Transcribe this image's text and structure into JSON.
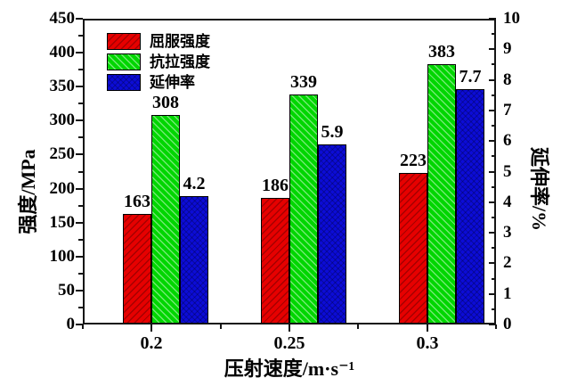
{
  "chart_data": {
    "type": "bar",
    "categories": [
      "0.2",
      "0.25",
      "0.3"
    ],
    "series": [
      {
        "name": "屈服强度",
        "axis": "left",
        "color": "#e60000",
        "hatch": "forward",
        "values": [
          163,
          186,
          223
        ],
        "labels": [
          "163",
          "186",
          "223"
        ]
      },
      {
        "name": "抗拉强度",
        "axis": "left",
        "color": "#00d600",
        "hatch": "backward",
        "values": [
          308,
          339,
          383
        ],
        "labels": [
          "308",
          "339",
          "383"
        ]
      },
      {
        "name": "延伸率",
        "axis": "right",
        "color": "#0c0cd6",
        "hatch": "cross",
        "values": [
          4.2,
          5.9,
          7.7
        ],
        "labels": [
          "4.2",
          "5.9",
          "7.7"
        ]
      }
    ],
    "xlabel": "压射速度/m·s⁻¹",
    "ylabel_left": "强度/MPa",
    "ylabel_right": "延伸率/%",
    "axes": {
      "left": {
        "min": 0,
        "max": 450,
        "tick_labels": [
          "0",
          "50",
          "100",
          "150",
          "200",
          "250",
          "300",
          "350",
          "400",
          "450"
        ]
      },
      "right": {
        "min": 0,
        "max": 10,
        "tick_labels": [
          "0",
          "1",
          "2",
          "3",
          "4",
          "5",
          "6",
          "7",
          "8",
          "9",
          "10"
        ]
      },
      "bottom": {
        "tick_labels": [
          "0.2",
          "0.25",
          "0.3"
        ]
      }
    },
    "legend_position": "top-left-inside",
    "grid": false,
    "colors": {
      "axis": "#141414",
      "text": "#000000",
      "background": "#ffffff"
    }
  }
}
